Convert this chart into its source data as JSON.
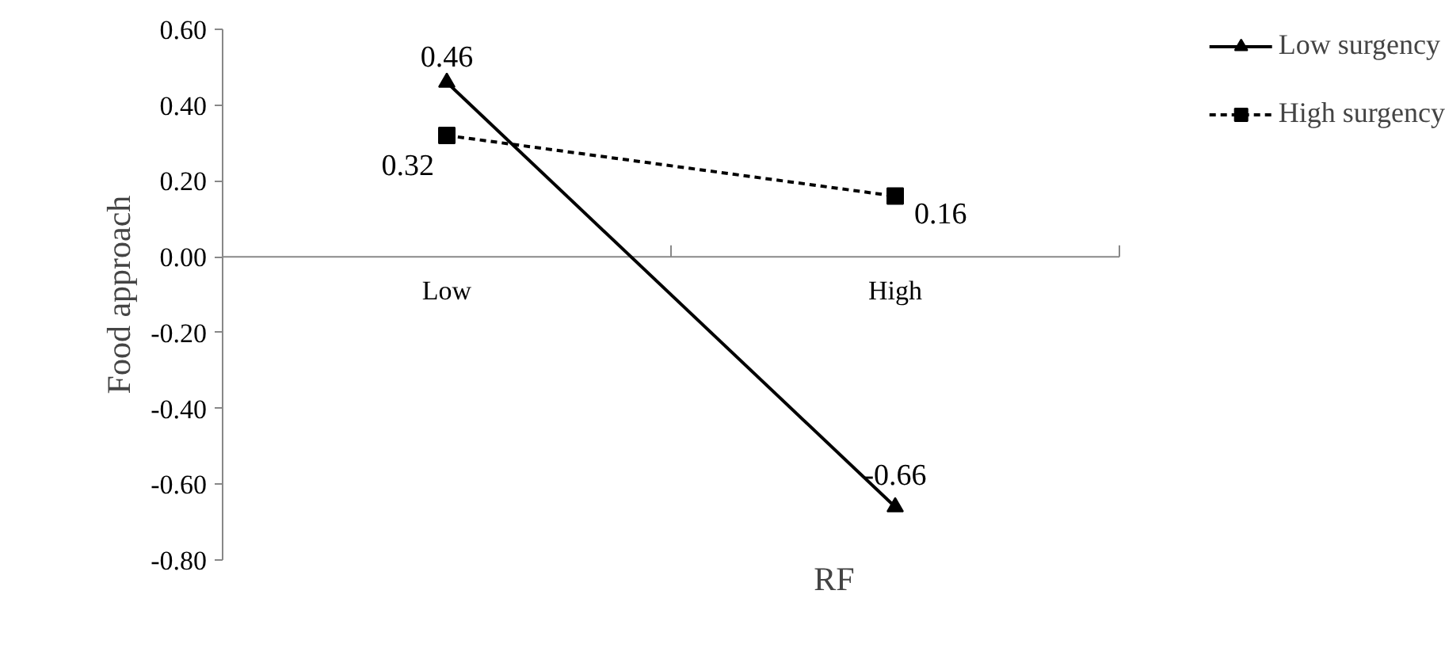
{
  "chart_data": {
    "type": "line",
    "xlabel": "RF",
    "ylabel": "Food approach",
    "categories": [
      "Low",
      "High"
    ],
    "series": [
      {
        "name": "Low surgency",
        "color": "#000000",
        "values": [
          0.46,
          -0.66
        ],
        "marker": "triangle",
        "line_style": "solid"
      },
      {
        "name": "High surgency",
        "color": "#000000",
        "values": [
          0.32,
          0.16
        ],
        "marker": "square",
        "line_style": "dashed"
      }
    ],
    "ylim": [
      -0.8,
      0.6
    ],
    "yticks": [
      {
        "value": -0.8,
        "label": "-0.80"
      },
      {
        "value": -0.6,
        "label": "-0.60"
      },
      {
        "value": -0.4,
        "label": "-0.40"
      },
      {
        "value": -0.2,
        "label": "-0.20"
      },
      {
        "value": 0,
        "label": "0.00"
      },
      {
        "value": 0.2,
        "label": "0.20"
      },
      {
        "value": 0.4,
        "label": "0.40"
      },
      {
        "value": 0.6,
        "label": "0.60"
      }
    ],
    "data_labels": true,
    "grid": false,
    "legend": "top right"
  }
}
